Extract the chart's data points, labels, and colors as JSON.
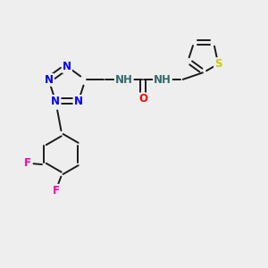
{
  "bg_color": "#eeeeee",
  "bond_color": "#1a1a1a",
  "N_color": "#0000ff",
  "O_color": "#ff0000",
  "F_color": "#ff00aa",
  "S_color": "#cccc00",
  "H_color": "#336b6b",
  "bond_width": 1.4,
  "dbo": 0.06,
  "figsize": [
    3.0,
    3.0
  ],
  "dpi": 100,
  "xlim": [
    0,
    10
  ],
  "ylim": [
    0,
    10
  ]
}
